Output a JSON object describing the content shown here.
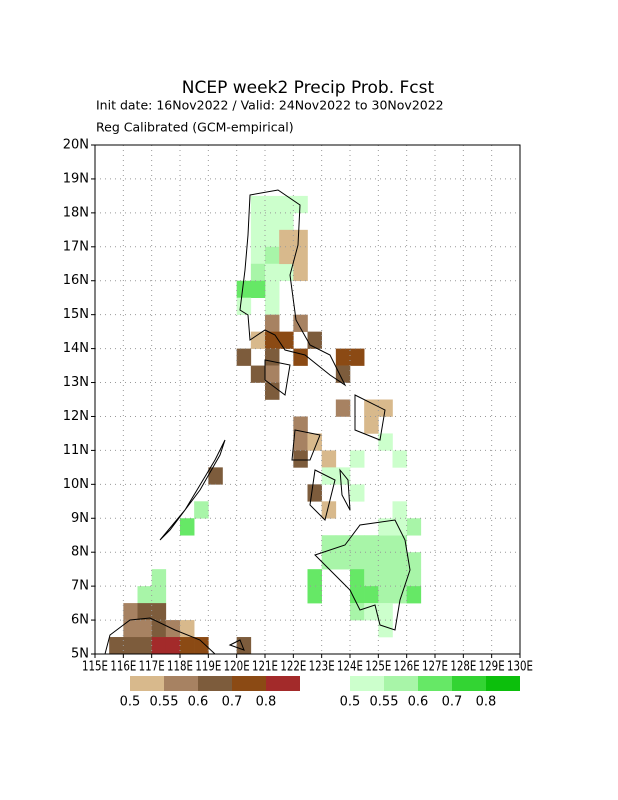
{
  "map": {
    "title": "NCEP week2 Precip Prob. Fcst",
    "init_line": "Init date: 16Nov2022 / Valid: 24Nov2022 to 30Nov2022",
    "calib_line": "Reg Calibrated (GCM-empirical)",
    "xlim": [
      115,
      130
    ],
    "ylim": [
      5,
      20
    ],
    "cell_size": 0.5,
    "xticks": [
      {
        "value": 115,
        "label": "115E"
      },
      {
        "value": 116,
        "label": "116E"
      },
      {
        "value": 117,
        "label": "117E"
      },
      {
        "value": 118,
        "label": "118E"
      },
      {
        "value": 119,
        "label": "119E"
      },
      {
        "value": 120,
        "label": "120E"
      },
      {
        "value": 121,
        "label": "121E"
      },
      {
        "value": 122,
        "label": "122E"
      },
      {
        "value": 123,
        "label": "123E"
      },
      {
        "value": 124,
        "label": "124E"
      },
      {
        "value": 125,
        "label": "125E"
      },
      {
        "value": 126,
        "label": "126E"
      },
      {
        "value": 127,
        "label": "127E"
      },
      {
        "value": 128,
        "label": "128E"
      },
      {
        "value": 129,
        "label": "129E"
      },
      {
        "value": 130,
        "label": "130E"
      }
    ],
    "yticks": [
      {
        "value": 5,
        "label": "5N"
      },
      {
        "value": 6,
        "label": "6N"
      },
      {
        "value": 7,
        "label": "7N"
      },
      {
        "value": 8,
        "label": "8N"
      },
      {
        "value": 9,
        "label": "9N"
      },
      {
        "value": 10,
        "label": "10N"
      },
      {
        "value": 11,
        "label": "11N"
      },
      {
        "value": 12,
        "label": "12N"
      },
      {
        "value": 13,
        "label": "13N"
      },
      {
        "value": 14,
        "label": "14N"
      },
      {
        "value": 15,
        "label": "15N"
      },
      {
        "value": 16,
        "label": "16N"
      },
      {
        "value": 17,
        "label": "17N"
      },
      {
        "value": 18,
        "label": "18N"
      },
      {
        "value": 19,
        "label": "19N"
      },
      {
        "value": 20,
        "label": "20N"
      }
    ],
    "grid": true,
    "dry_legend": {
      "colors": [
        "#d8b98c",
        "#a78262",
        "#7d5c3c",
        "#8b4a14",
        "#a32a2a"
      ],
      "labels": [
        "0.5",
        "0.55",
        "0.6",
        "0.7",
        "0.8"
      ]
    },
    "wet_legend": {
      "colors": [
        "#ccffcc",
        "#a8f5a8",
        "#66e866",
        "#33d433",
        "#0cbf0c"
      ],
      "labels": [
        "0.5",
        "0.55",
        "0.6",
        "0.7",
        "0.8"
      ]
    },
    "cells": [
      [
        120.5,
        18,
        1
      ],
      [
        121,
        18,
        1
      ],
      [
        121.5,
        18,
        1
      ],
      [
        122,
        18,
        1
      ],
      [
        120.5,
        17.5,
        1
      ],
      [
        121,
        17.5,
        1
      ],
      [
        121.5,
        17.5,
        1
      ],
      [
        120.5,
        17,
        1
      ],
      [
        121,
        17,
        1
      ],
      [
        120.5,
        16.5,
        1
      ],
      [
        121,
        16.5,
        2
      ],
      [
        120.5,
        16,
        2
      ],
      [
        121,
        16,
        1
      ],
      [
        121.5,
        16,
        1
      ],
      [
        121,
        15.5,
        1
      ],
      [
        120,
        15.5,
        3
      ],
      [
        120.5,
        15.5,
        3
      ],
      [
        120,
        15,
        1
      ],
      [
        121,
        15,
        1
      ],
      [
        121.5,
        16.5,
        -1
      ],
      [
        122,
        16.5,
        -1
      ],
      [
        121.5,
        17,
        -1
      ],
      [
        122,
        17,
        -1
      ],
      [
        122,
        16,
        -1
      ],
      [
        121,
        14.5,
        -2
      ],
      [
        122,
        14.5,
        -2
      ],
      [
        120.5,
        14,
        -1
      ],
      [
        121,
        14,
        -4
      ],
      [
        121.5,
        14,
        -4
      ],
      [
        122.5,
        14,
        -3
      ],
      [
        120,
        13.5,
        -3
      ],
      [
        121,
        13.5,
        -3
      ],
      [
        122,
        13.5,
        -4
      ],
      [
        120.5,
        13,
        -3
      ],
      [
        121,
        13,
        -2
      ],
      [
        121,
        12.5,
        -3
      ],
      [
        123.5,
        13.5,
        -4
      ],
      [
        124,
        13.5,
        -4
      ],
      [
        123.5,
        13,
        -3
      ],
      [
        123.5,
        12,
        -2
      ],
      [
        124.5,
        12,
        -1
      ],
      [
        125,
        12,
        -1
      ],
      [
        124.5,
        11.5,
        -1
      ],
      [
        122,
        11,
        -2
      ],
      [
        122,
        11.5,
        -2
      ],
      [
        122,
        10.5,
        -3
      ],
      [
        122.5,
        11,
        -1
      ],
      [
        123,
        10.5,
        -1
      ],
      [
        122.5,
        9.5,
        -3
      ],
      [
        123,
        9,
        -1
      ],
      [
        119,
        10,
        -3
      ],
      [
        123,
        10,
        1
      ],
      [
        123.5,
        10,
        1
      ],
      [
        124,
        9.5,
        1
      ],
      [
        125.5,
        9,
        1
      ],
      [
        125.5,
        10.5,
        1
      ],
      [
        125,
        11,
        1
      ],
      [
        124,
        10.5,
        1
      ],
      [
        118.5,
        9,
        2
      ],
      [
        118,
        8.5,
        3
      ],
      [
        117,
        7,
        2
      ],
      [
        116.5,
        6.5,
        2
      ],
      [
        117,
        6.5,
        2
      ],
      [
        122.5,
        7,
        3
      ],
      [
        122.5,
        6.5,
        3
      ],
      [
        123,
        8,
        2
      ],
      [
        123.5,
        8,
        2
      ],
      [
        124,
        8,
        2
      ],
      [
        124.5,
        8,
        2
      ],
      [
        125,
        8,
        2
      ],
      [
        125.5,
        8,
        2
      ],
      [
        126,
        8.5,
        2
      ],
      [
        123,
        7.5,
        2
      ],
      [
        123.5,
        7.5,
        2
      ],
      [
        124,
        7.5,
        2
      ],
      [
        124.5,
        7.5,
        2
      ],
      [
        125,
        7.5,
        2
      ],
      [
        125.5,
        7.5,
        2
      ],
      [
        126,
        7.5,
        2
      ],
      [
        124,
        7,
        3
      ],
      [
        124.5,
        7,
        2
      ],
      [
        125,
        7,
        2
      ],
      [
        125.5,
        7,
        2
      ],
      [
        126,
        7,
        2
      ],
      [
        124,
        6.5,
        3
      ],
      [
        124.5,
        6.5,
        3
      ],
      [
        125,
        6.5,
        2
      ],
      [
        125.5,
        6.5,
        2
      ],
      [
        126,
        6.5,
        3
      ],
      [
        124,
        6,
        2
      ],
      [
        124.5,
        6,
        1
      ],
      [
        125,
        6,
        1
      ],
      [
        125,
        5.5,
        1
      ],
      [
        125,
        8.5,
        1
      ],
      [
        125.5,
        8.5,
        1
      ],
      [
        116,
        6,
        -2
      ],
      [
        116,
        5.5,
        -2
      ],
      [
        116.5,
        6,
        -3
      ],
      [
        116.5,
        5.5,
        -2
      ],
      [
        117,
        6,
        -3
      ],
      [
        117,
        5.5,
        -3
      ],
      [
        117.5,
        5.5,
        -2
      ],
      [
        118,
        5.5,
        -1
      ],
      [
        115.5,
        5,
        -3
      ],
      [
        116,
        5,
        -3
      ],
      [
        116.5,
        5,
        -3
      ],
      [
        117,
        5,
        -5
      ],
      [
        117.5,
        5,
        -5
      ],
      [
        118,
        5,
        -4
      ],
      [
        118.5,
        5,
        -4
      ],
      [
        120,
        5,
        -3
      ]
    ]
  }
}
